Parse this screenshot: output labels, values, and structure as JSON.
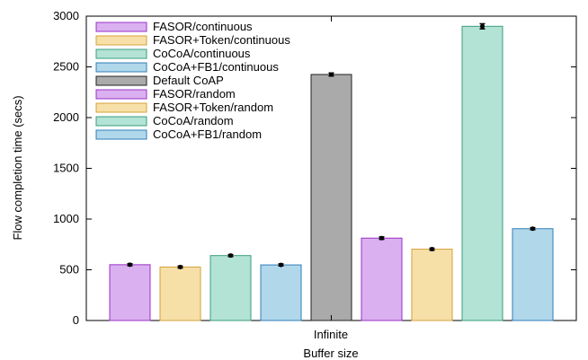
{
  "chart_data": {
    "type": "bar",
    "xlabel": "Buffer size",
    "ylabel": "Flow completion time (secs)",
    "categories": [
      "Infinite"
    ],
    "ylim": [
      0,
      3000
    ],
    "yticks": [
      0,
      500,
      1000,
      1500,
      2000,
      2500,
      3000
    ],
    "grid": false,
    "legend_position": "top-left",
    "series": [
      {
        "name": "FASOR/continuous",
        "values": [
          550
        ],
        "error": [
          10
        ],
        "fill": "#dab0f0",
        "stroke": "#9b30c8"
      },
      {
        "name": "FASOR+Token/continuous",
        "values": [
          527
        ],
        "error": [
          10
        ],
        "fill": "#f7e0a8",
        "stroke": "#d6a03a"
      },
      {
        "name": "CoCoA/continuous",
        "values": [
          640
        ],
        "error": [
          10
        ],
        "fill": "#b3e3d4",
        "stroke": "#3a9e7e"
      },
      {
        "name": "CoCoA+FB1/continuous",
        "values": [
          548
        ],
        "error": [
          10
        ],
        "fill": "#b0d7ea",
        "stroke": "#2f7fb8"
      },
      {
        "name": "Default CoAP",
        "values": [
          2425
        ],
        "error": [
          15
        ],
        "fill": "#aaaaaa",
        "stroke": "#222222"
      },
      {
        "name": "FASOR/random",
        "values": [
          812
        ],
        "error": [
          12
        ],
        "fill": "#dab0f0",
        "stroke": "#9b30c8"
      },
      {
        "name": "FASOR+Token/random",
        "values": [
          703
        ],
        "error": [
          10
        ],
        "fill": "#f7e0a8",
        "stroke": "#d6a03a"
      },
      {
        "name": "CoCoA/random",
        "values": [
          2900
        ],
        "error": [
          25
        ],
        "fill": "#b3e3d4",
        "stroke": "#3a9e7e"
      },
      {
        "name": "CoCoA+FB1/random",
        "values": [
          905
        ],
        "error": [
          10
        ],
        "fill": "#b0d7ea",
        "stroke": "#2f7fb8"
      }
    ]
  }
}
